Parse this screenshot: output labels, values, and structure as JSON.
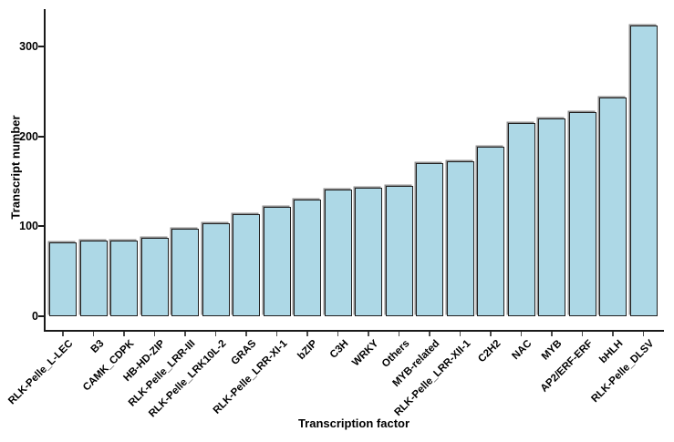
{
  "chart_data": {
    "type": "bar",
    "title": "",
    "xlabel": "Transcription factor",
    "ylabel": "Transcript number",
    "categories": [
      "RLK-Pelle_L-LEC",
      "B3",
      "CAMK_CDPK",
      "HB-HD-ZIP",
      "RLK-Pelle_LRR-III",
      "RLK-Pelle_LRK10L-2",
      "GRAS",
      "RLK-Pelle_LRR-XI-1",
      "bZIP",
      "C3H",
      "WRKY",
      "Others",
      "MYB-related",
      "RLK-Pelle_LRR-XII-1",
      "C2H2",
      "NAC",
      "MYB",
      "AP2/ERF-ERF",
      "bHLH",
      "RLK-Pelle_DLSV"
    ],
    "values": [
      82,
      84,
      84,
      87,
      97,
      103,
      114,
      122,
      130,
      141,
      143,
      145,
      170,
      172,
      189,
      215,
      220,
      227,
      243,
      323
    ],
    "yticks": [
      0,
      100,
      200,
      300
    ],
    "ylim": [
      0,
      340
    ],
    "grid": false,
    "legend": false,
    "colors": {
      "bar_fill": "#ADD8E6",
      "bar_border": "#202020",
      "axis": "#1a1a1a",
      "background": "#ffffff"
    }
  }
}
